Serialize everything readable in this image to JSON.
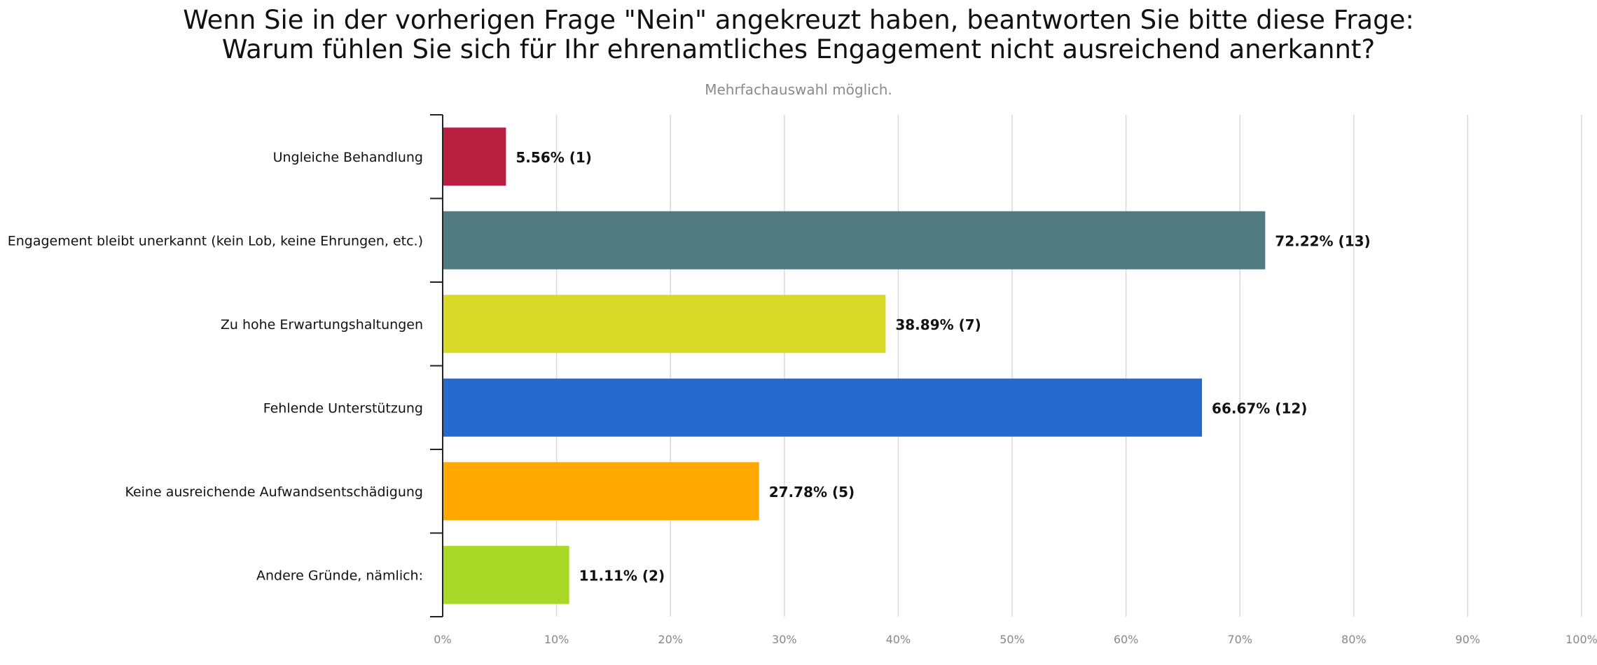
{
  "chart_data": {
    "type": "bar",
    "orientation": "horizontal",
    "title_lines": [
      "Wenn Sie in der vorherigen Frage \"Nein\" angekreuzt haben, beantworten Sie bitte diese Frage:",
      "Warum fühlen Sie sich für Ihr ehrenamtliches Engagement nicht ausreichend anerkannt?"
    ],
    "subtitle": "Mehrfachauswahl möglich.",
    "categories": [
      "Ungleiche Behandlung",
      "Engagement bleibt unerkannt (kein Lob, keine Ehrungen, etc.)",
      "Zu hohe Erwartungshaltungen",
      "Fehlende Unterstützung",
      "Keine ausreichende Aufwandsentschädigung",
      "Andere Gründe, nämlich:"
    ],
    "values": [
      5.56,
      72.22,
      38.89,
      66.67,
      27.78,
      11.11
    ],
    "counts": [
      1,
      13,
      7,
      12,
      5,
      2
    ],
    "data_labels": [
      "5.56% (1)",
      "72.22% (13)",
      "38.89% (7)",
      "66.67% (12)",
      "27.78% (5)",
      "11.11% (2)"
    ],
    "colors": [
      "#b81f40",
      "#517b80",
      "#d8da27",
      "#276acf",
      "#fea800",
      "#a9d926"
    ],
    "xlim": [
      0,
      100
    ],
    "xticks": [
      "0%",
      "10%",
      "20%",
      "30%",
      "40%",
      "50%",
      "60%",
      "70%",
      "80%",
      "90%",
      "100%"
    ],
    "grid": true
  }
}
